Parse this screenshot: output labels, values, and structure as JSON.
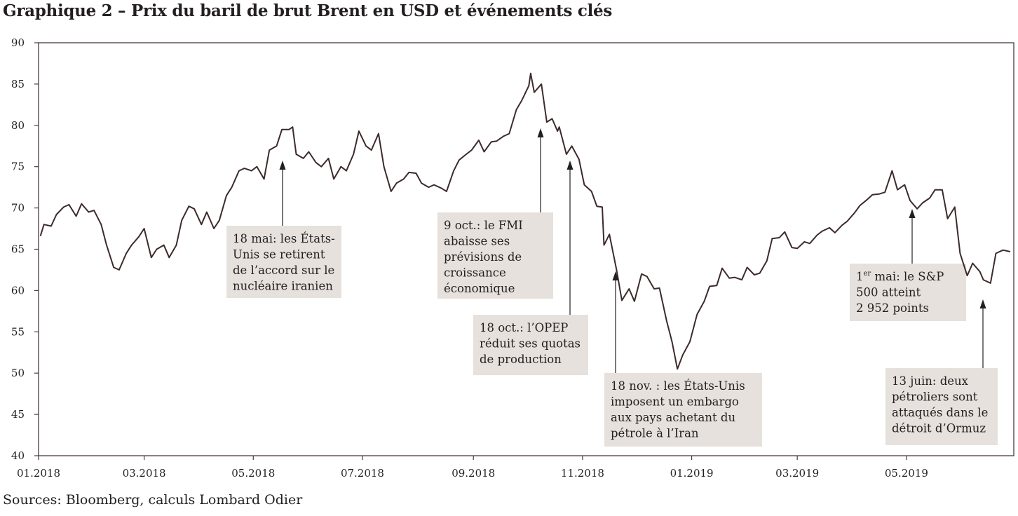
{
  "chart_data": {
    "type": "line",
    "title": "Graphique 2 – Prix du baril de brut Brent en USD et événements clés",
    "source": "Sources: Bloomberg, calculs Lombard Odier",
    "xlabel": "",
    "ylabel": "",
    "ylim": [
      40,
      90
    ],
    "y_ticks": [
      40,
      45,
      50,
      55,
      60,
      65,
      70,
      75,
      80,
      85,
      90
    ],
    "x_range": [
      "2018-01-01",
      "2019-06-30"
    ],
    "x_ticks": [
      {
        "date": "2018-01-01",
        "label": "01.2018"
      },
      {
        "date": "2018-03-01",
        "label": "03.2018"
      },
      {
        "date": "2018-05-01",
        "label": "05.2018"
      },
      {
        "date": "2018-07-01",
        "label": "07.2018"
      },
      {
        "date": "2018-09-01",
        "label": "09.2018"
      },
      {
        "date": "2018-11-01",
        "label": "11.2018"
      },
      {
        "date": "2019-01-01",
        "label": "01.2019"
      },
      {
        "date": "2019-03-01",
        "label": "03.2019"
      },
      {
        "date": "2019-05-01",
        "label": "05.2019"
      }
    ],
    "grid": false,
    "line_color": "#3d2a2b",
    "annotation_box_color": "#e6e1dc",
    "series": [
      {
        "values": [
          [
            "2018-01-02",
            66.6
          ],
          [
            "2018-01-04",
            68.0
          ],
          [
            "2018-01-08",
            67.8
          ],
          [
            "2018-01-11",
            69.2
          ],
          [
            "2018-01-15",
            70.1
          ],
          [
            "2018-01-18",
            70.4
          ],
          [
            "2018-01-22",
            69.0
          ],
          [
            "2018-01-25",
            70.5
          ],
          [
            "2018-01-29",
            69.5
          ],
          [
            "2018-02-01",
            69.7
          ],
          [
            "2018-02-05",
            68.0
          ],
          [
            "2018-02-08",
            65.5
          ],
          [
            "2018-02-12",
            62.8
          ],
          [
            "2018-02-15",
            62.5
          ],
          [
            "2018-02-19",
            64.5
          ],
          [
            "2018-02-22",
            65.5
          ],
          [
            "2018-02-26",
            66.5
          ],
          [
            "2018-03-01",
            67.5
          ],
          [
            "2018-03-05",
            64.0
          ],
          [
            "2018-03-08",
            65.0
          ],
          [
            "2018-03-12",
            65.5
          ],
          [
            "2018-03-15",
            64.0
          ],
          [
            "2018-03-19",
            65.5
          ],
          [
            "2018-03-22",
            68.5
          ],
          [
            "2018-03-26",
            70.2
          ],
          [
            "2018-03-29",
            69.9
          ],
          [
            "2018-04-02",
            68.0
          ],
          [
            "2018-04-05",
            69.5
          ],
          [
            "2018-04-09",
            67.5
          ],
          [
            "2018-04-12",
            68.5
          ],
          [
            "2018-04-16",
            71.5
          ],
          [
            "2018-04-19",
            72.5
          ],
          [
            "2018-04-23",
            74.5
          ],
          [
            "2018-04-26",
            74.8
          ],
          [
            "2018-04-30",
            74.5
          ],
          [
            "2018-05-03",
            75.0
          ],
          [
            "2018-05-07",
            73.5
          ],
          [
            "2018-05-10",
            77.0
          ],
          [
            "2018-05-14",
            77.5
          ],
          [
            "2018-05-17",
            79.5
          ],
          [
            "2018-05-21",
            79.5
          ],
          [
            "2018-05-23",
            79.8
          ],
          [
            "2018-05-25",
            76.5
          ],
          [
            "2018-05-29",
            76.0
          ],
          [
            "2018-06-01",
            76.8
          ],
          [
            "2018-06-05",
            75.5
          ],
          [
            "2018-06-08",
            75.0
          ],
          [
            "2018-06-12",
            76.0
          ],
          [
            "2018-06-15",
            73.5
          ],
          [
            "2018-06-19",
            75.0
          ],
          [
            "2018-06-22",
            74.5
          ],
          [
            "2018-06-26",
            76.5
          ],
          [
            "2018-06-29",
            79.3
          ],
          [
            "2018-07-03",
            77.5
          ],
          [
            "2018-07-06",
            77.0
          ],
          [
            "2018-07-10",
            79.0
          ],
          [
            "2018-07-13",
            75.0
          ],
          [
            "2018-07-17",
            72.0
          ],
          [
            "2018-07-20",
            73.0
          ],
          [
            "2018-07-24",
            73.5
          ],
          [
            "2018-07-27",
            74.3
          ],
          [
            "2018-07-31",
            74.2
          ],
          [
            "2018-08-03",
            73.0
          ],
          [
            "2018-08-07",
            72.5
          ],
          [
            "2018-08-10",
            72.8
          ],
          [
            "2018-08-14",
            72.4
          ],
          [
            "2018-08-17",
            72.0
          ],
          [
            "2018-08-21",
            74.5
          ],
          [
            "2018-08-24",
            75.8
          ],
          [
            "2018-08-28",
            76.5
          ],
          [
            "2018-08-31",
            77.0
          ],
          [
            "2018-09-04",
            78.2
          ],
          [
            "2018-09-07",
            76.8
          ],
          [
            "2018-09-11",
            78.0
          ],
          [
            "2018-09-14",
            78.1
          ],
          [
            "2018-09-18",
            78.7
          ],
          [
            "2018-09-21",
            79.0
          ],
          [
            "2018-09-25",
            81.9
          ],
          [
            "2018-09-28",
            83.0
          ],
          [
            "2018-10-02",
            84.8
          ],
          [
            "2018-10-03",
            86.3
          ],
          [
            "2018-10-05",
            84.0
          ],
          [
            "2018-10-09",
            85.0
          ],
          [
            "2018-10-12",
            80.4
          ],
          [
            "2018-10-15",
            80.8
          ],
          [
            "2018-10-18",
            79.3
          ],
          [
            "2018-10-19",
            79.8
          ],
          [
            "2018-10-23",
            76.5
          ],
          [
            "2018-10-26",
            77.5
          ],
          [
            "2018-10-30",
            75.9
          ],
          [
            "2018-11-02",
            72.8
          ],
          [
            "2018-11-06",
            72.0
          ],
          [
            "2018-11-09",
            70.2
          ],
          [
            "2018-11-12",
            70.1
          ],
          [
            "2018-11-13",
            65.5
          ],
          [
            "2018-11-16",
            66.8
          ],
          [
            "2018-11-20",
            62.5
          ],
          [
            "2018-11-23",
            58.8
          ],
          [
            "2018-11-27",
            60.2
          ],
          [
            "2018-11-30",
            58.7
          ],
          [
            "2018-12-04",
            62.0
          ],
          [
            "2018-12-07",
            61.7
          ],
          [
            "2018-12-11",
            60.2
          ],
          [
            "2018-12-14",
            60.3
          ],
          [
            "2018-12-18",
            56.3
          ],
          [
            "2018-12-21",
            53.8
          ],
          [
            "2018-12-24",
            50.5
          ],
          [
            "2018-12-27",
            52.2
          ],
          [
            "2018-12-31",
            53.8
          ],
          [
            "2019-01-04",
            57.1
          ],
          [
            "2019-01-08",
            58.7
          ],
          [
            "2019-01-11",
            60.5
          ],
          [
            "2019-01-15",
            60.6
          ],
          [
            "2019-01-18",
            62.7
          ],
          [
            "2019-01-22",
            61.5
          ],
          [
            "2019-01-25",
            61.6
          ],
          [
            "2019-01-29",
            61.3
          ],
          [
            "2019-02-01",
            62.8
          ],
          [
            "2019-02-05",
            61.9
          ],
          [
            "2019-02-08",
            62.1
          ],
          [
            "2019-02-12",
            63.6
          ],
          [
            "2019-02-15",
            66.3
          ],
          [
            "2019-02-19",
            66.4
          ],
          [
            "2019-02-22",
            67.1
          ],
          [
            "2019-02-26",
            65.2
          ],
          [
            "2019-03-01",
            65.1
          ],
          [
            "2019-03-05",
            65.9
          ],
          [
            "2019-03-08",
            65.7
          ],
          [
            "2019-03-12",
            66.7
          ],
          [
            "2019-03-15",
            67.2
          ],
          [
            "2019-03-19",
            67.6
          ],
          [
            "2019-03-22",
            67.0
          ],
          [
            "2019-03-26",
            67.9
          ],
          [
            "2019-03-29",
            68.4
          ],
          [
            "2019-04-02",
            69.4
          ],
          [
            "2019-04-05",
            70.3
          ],
          [
            "2019-04-09",
            71.0
          ],
          [
            "2019-04-12",
            71.6
          ],
          [
            "2019-04-16",
            71.7
          ],
          [
            "2019-04-19",
            71.9
          ],
          [
            "2019-04-23",
            74.5
          ],
          [
            "2019-04-26",
            72.2
          ],
          [
            "2019-04-30",
            72.8
          ],
          [
            "2019-05-03",
            70.9
          ],
          [
            "2019-05-07",
            69.9
          ],
          [
            "2019-05-10",
            70.6
          ],
          [
            "2019-05-14",
            71.2
          ],
          [
            "2019-05-17",
            72.2
          ],
          [
            "2019-05-21",
            72.2
          ],
          [
            "2019-05-24",
            68.7
          ],
          [
            "2019-05-28",
            70.1
          ],
          [
            "2019-05-31",
            64.5
          ],
          [
            "2019-06-04",
            61.8
          ],
          [
            "2019-06-07",
            63.3
          ],
          [
            "2019-06-11",
            62.3
          ],
          [
            "2019-06-13",
            61.3
          ],
          [
            "2019-06-17",
            60.9
          ],
          [
            "2019-06-20",
            64.5
          ],
          [
            "2019-06-24",
            64.9
          ],
          [
            "2019-06-28",
            64.7
          ]
        ]
      }
    ],
    "annotations": [
      {
        "lines": [
          "18 mai: les États-",
          "Unis se retirent",
          "de l’accord sur le",
          "nucléaire iranien"
        ]
      },
      {
        "lines": [
          "9 oct.: le FMI",
          "abaisse ses",
          "prévisions de",
          "croissance",
          "économique"
        ]
      },
      {
        "lines": [
          "18 oct.: l’OPEP",
          "réduit ses quotas",
          "de production"
        ]
      },
      {
        "lines": [
          "18 nov. : les États-Unis",
          "imposent un embargo",
          "aux pays achetant du",
          "pétrole à l’Iran"
        ]
      },
      {
        "lines": [
          "1er mai: le S&P",
          "500 atteint",
          "2 952 points"
        ]
      },
      {
        "lines": [
          "13 juin: deux",
          "pétroliers sont",
          "attaqués dans le",
          "détroit d’Ormuz"
        ]
      }
    ]
  }
}
